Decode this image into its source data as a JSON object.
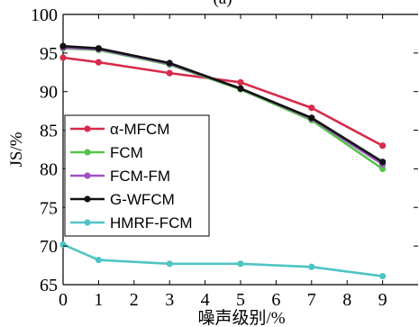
{
  "chart_data": {
    "type": "line",
    "title": "(a)",
    "xlabel": "噪声级别/%",
    "ylabel": "JS/%",
    "x": [
      0,
      1,
      3,
      5,
      7,
      9
    ],
    "xticks": [
      "0",
      "1",
      "2",
      "3",
      "4",
      "5",
      "6",
      "7",
      "8",
      "9"
    ],
    "xlim": [
      0,
      10
    ],
    "yticks": [
      "65",
      "70",
      "75",
      "80",
      "85",
      "90",
      "95",
      "100"
    ],
    "ylim": [
      65,
      100
    ],
    "grid": false,
    "legend_position": "middle-left",
    "series": [
      {
        "name": "α-MFCM",
        "color": "#d62b4a",
        "values": [
          94.4,
          93.8,
          92.4,
          91.2,
          87.9,
          83.0
        ]
      },
      {
        "name": "FCM",
        "color": "#55c24a",
        "values": [
          95.6,
          95.4,
          93.5,
          90.3,
          86.3,
          80.0
        ]
      },
      {
        "name": "FCM-FM",
        "color": "#a04fc6",
        "values": [
          95.7,
          95.5,
          93.6,
          90.4,
          86.5,
          80.6
        ]
      },
      {
        "name": "G-WFCM",
        "color": "#111111",
        "values": [
          95.9,
          95.6,
          93.7,
          90.4,
          86.6,
          80.9
        ]
      },
      {
        "name": "HMRF-FCM",
        "color": "#4fc4c4",
        "values": [
          70.2,
          68.2,
          67.7,
          67.7,
          67.3,
          66.1
        ]
      }
    ]
  }
}
